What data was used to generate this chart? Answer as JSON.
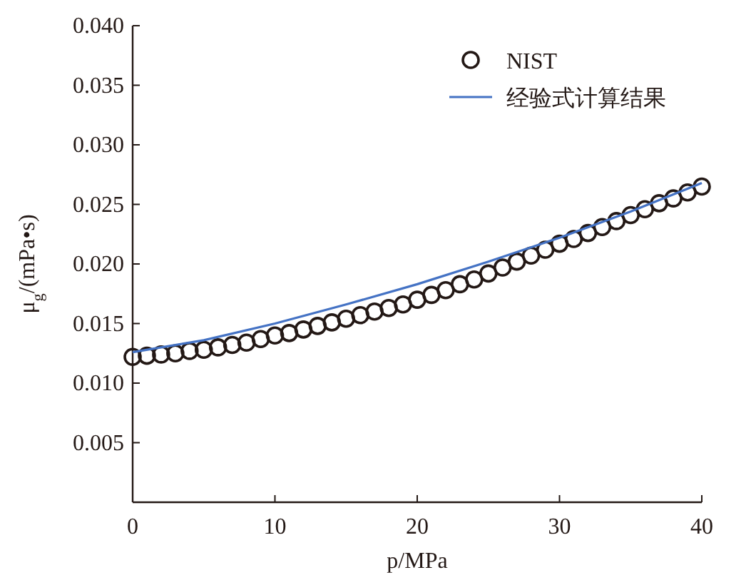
{
  "chart_data": {
    "type": "scatter",
    "xlabel": "p/MPa",
    "ylabel": "μ$_{g}$/(mPa•s)",
    "xlim": [
      0,
      40
    ],
    "xticks": [
      0,
      10,
      20,
      30,
      40
    ],
    "ylim": [
      0,
      0.04
    ],
    "yticks": [
      {
        "value": 0.005,
        "label": "0.005"
      },
      {
        "value": 0.01,
        "label": "0.010"
      },
      {
        "value": 0.015,
        "label": "0.015"
      },
      {
        "value": 0.02,
        "label": "0.020"
      },
      {
        "value": 0.025,
        "label": "0.025"
      },
      {
        "value": 0.03,
        "label": "0.030"
      },
      {
        "value": 0.035,
        "label": "0.035"
      },
      {
        "value": 0.04,
        "label": "0.040"
      }
    ],
    "legend": "top right",
    "grid": false,
    "series": [
      {
        "name": "NIST",
        "marker": "circle",
        "color": "#231815",
        "x": [
          0,
          1,
          2,
          3,
          4,
          5,
          6,
          7,
          8,
          9,
          10,
          11,
          12,
          13,
          14,
          15,
          16,
          17,
          18,
          19,
          20,
          21,
          22,
          23,
          24,
          25,
          26,
          27,
          28,
          29,
          30,
          31,
          32,
          33,
          34,
          35,
          36,
          37,
          38,
          39,
          40
        ],
        "values": [
          0.0122,
          0.0123,
          0.0124,
          0.0125,
          0.0127,
          0.0128,
          0.013,
          0.0132,
          0.0134,
          0.0137,
          0.014,
          0.0142,
          0.0145,
          0.0148,
          0.0151,
          0.0154,
          0.0157,
          0.016,
          0.0163,
          0.0166,
          0.017,
          0.0174,
          0.0178,
          0.0183,
          0.0187,
          0.0192,
          0.0197,
          0.0202,
          0.0207,
          0.0212,
          0.0217,
          0.0221,
          0.0226,
          0.0231,
          0.0236,
          0.0241,
          0.0246,
          0.0251,
          0.0255,
          0.026,
          0.0265
        ]
      },
      {
        "name": "经验式计算结果",
        "type": "line",
        "color": "#4472c4",
        "x": [
          0,
          5,
          10,
          15,
          20,
          25,
          30,
          35,
          40
        ],
        "values": [
          0.0126,
          0.0136,
          0.015,
          0.0166,
          0.0183,
          0.0202,
          0.0222,
          0.0244,
          0.0268
        ]
      }
    ]
  }
}
